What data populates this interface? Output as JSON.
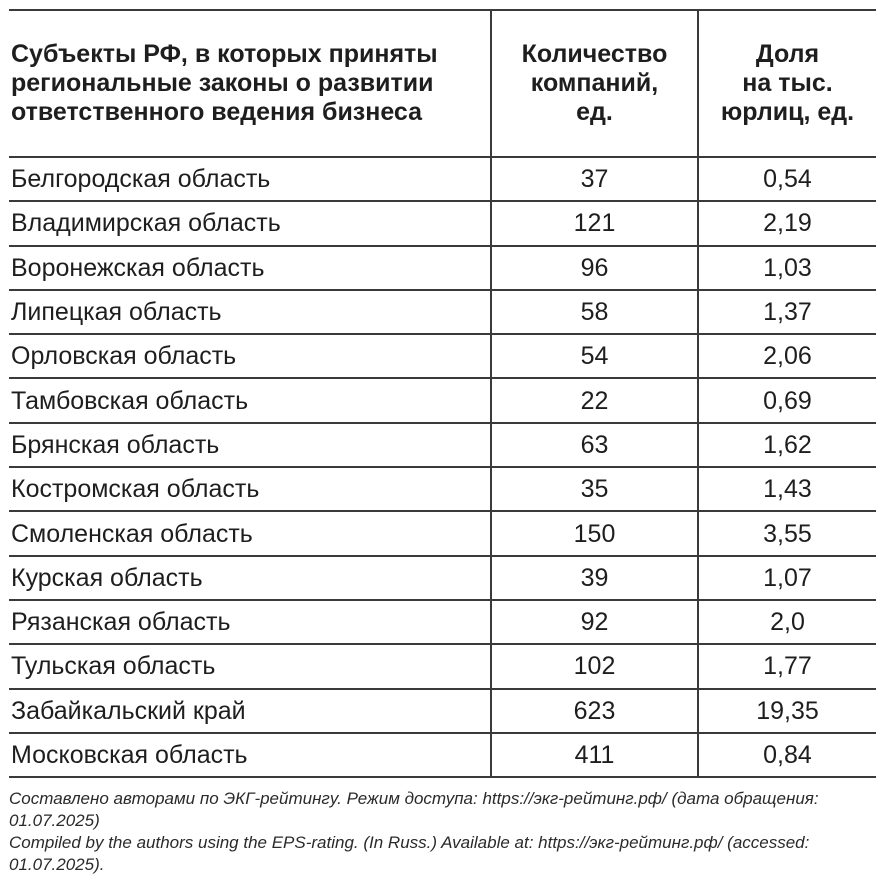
{
  "table": {
    "headers": {
      "region": "Субъекты РФ, в которых приняты региональные законы о развитии ответственного ведения бизнеса",
      "companies_line1": "Количество",
      "companies_line2": "компаний,",
      "companies_line3": "ед.",
      "share_line1": "Доля",
      "share_line2": "на тыс.",
      "share_line3": "юрлиц, ед."
    },
    "rows": [
      {
        "region": "Белгородская область",
        "companies": "37",
        "share": "0,54"
      },
      {
        "region": "Владимирская область",
        "companies": "121",
        "share": "2,19"
      },
      {
        "region": "Воронежская область",
        "companies": "96",
        "share": "1,03"
      },
      {
        "region": "Липецкая область",
        "companies": "58",
        "share": "1,37"
      },
      {
        "region": "Орловская область",
        "companies": "54",
        "share": "2,06"
      },
      {
        "region": "Тамбовская область",
        "companies": "22",
        "share": "0,69"
      },
      {
        "region": "Брянская область",
        "companies": "63",
        "share": "1,62"
      },
      {
        "region": "Костромская область",
        "companies": "35",
        "share": "1,43"
      },
      {
        "region": "Смоленская область",
        "companies": "150",
        "share": "3,55"
      },
      {
        "region": "Курская область",
        "companies": "39",
        "share": "1,07"
      },
      {
        "region": "Рязанская область",
        "companies": "92",
        "share": "2,0"
      },
      {
        "region": "Тульская область",
        "companies": "102",
        "share": "1,77"
      },
      {
        "region": "Забайкальский край",
        "companies": "623",
        "share": "19,35"
      },
      {
        "region": "Московская область",
        "companies": "411",
        "share": "0,84"
      }
    ]
  },
  "footnote": {
    "ru": "Составлено авторами по ЭКГ-рейтингу. Режим доступа: https://экг-рейтинг.рф/ (дата обращения: 01.07.2025)",
    "en": "Compiled by the authors using the EPS-rating. (In Russ.) Available at: https://экг-рейтинг.рф/ (accessed: 01.07.2025)."
  }
}
